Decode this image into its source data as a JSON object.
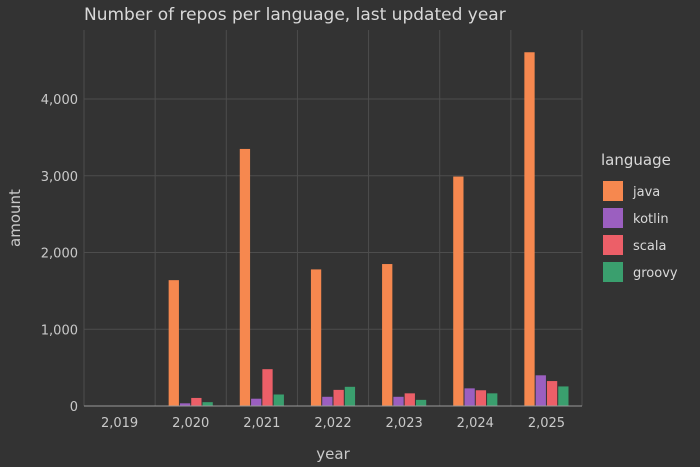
{
  "chart_data": {
    "type": "bar",
    "title": "Number of repos per language, last updated year",
    "xlabel": "year",
    "ylabel": "amount",
    "categories": [
      "2,019",
      "2,020",
      "2,021",
      "2,022",
      "2,023",
      "2,024",
      "2,025"
    ],
    "series": [
      {
        "name": "java",
        "color": "#f6884f",
        "values": [
          0,
          1640,
          3350,
          1780,
          1850,
          2990,
          4610
        ]
      },
      {
        "name": "kotlin",
        "color": "#9b5fc0",
        "values": [
          0,
          35,
          95,
          120,
          120,
          230,
          400
        ]
      },
      {
        "name": "scala",
        "color": "#ec5f68",
        "values": [
          0,
          105,
          480,
          210,
          165,
          205,
          325
        ]
      },
      {
        "name": "groovy",
        "color": "#3a9f6e",
        "values": [
          0,
          50,
          150,
          250,
          80,
          165,
          255
        ]
      }
    ],
    "ylim": [
      0,
      4900
    ],
    "yticks": [
      0,
      1000,
      2000,
      3000,
      4000
    ],
    "ytick_labels": [
      "0",
      "1,000",
      "2,000",
      "3,000",
      "4,000"
    ],
    "legend": {
      "title": "language",
      "position": "right"
    },
    "grid": true
  }
}
